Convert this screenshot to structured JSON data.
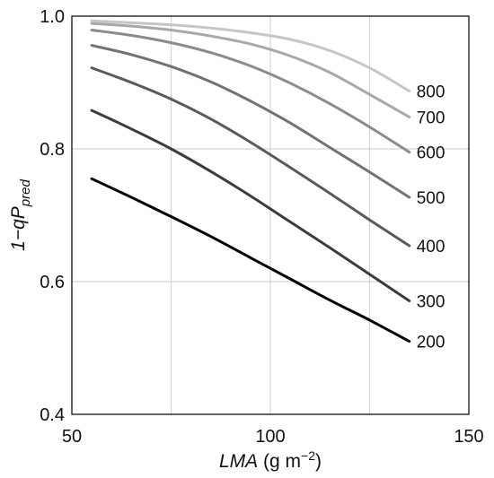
{
  "chart_data": {
    "type": "line",
    "title": "",
    "xlabel": {
      "italic": "LMA",
      "unit": " (g m",
      "exp": "−2",
      "close": ")"
    },
    "ylabel": {
      "prefix": "1−q",
      "main": "P",
      "sub": "pred"
    },
    "xlim": [
      50,
      150
    ],
    "ylim": [
      0.4,
      1.0
    ],
    "xticks": [
      {
        "value": 50,
        "label": "50"
      },
      {
        "value": 100,
        "label": "100"
      },
      {
        "value": 150,
        "label": "150"
      }
    ],
    "yticks": [
      {
        "value": 0.4,
        "label": "0.4"
      },
      {
        "value": 0.6,
        "label": "0.6"
      },
      {
        "value": 0.8,
        "label": "0.8"
      },
      {
        "value": 1.0,
        "label": "1.0"
      }
    ],
    "x_grid": [
      75,
      100,
      125
    ],
    "y_grid": [
      0.6,
      0.8
    ],
    "grid": true,
    "legend": "labels at right end of each line",
    "x": [
      55,
      65,
      75,
      85,
      95,
      105,
      115,
      125,
      135
    ],
    "series": [
      {
        "name": "800",
        "color": "#c6c6c6",
        "values": [
          0.993,
          0.99,
          0.987,
          0.982,
          0.975,
          0.965,
          0.948,
          0.922,
          0.887
        ]
      },
      {
        "name": "700",
        "color": "#a8a8a8",
        "values": [
          0.989,
          0.985,
          0.979,
          0.97,
          0.958,
          0.94,
          0.915,
          0.882,
          0.848
        ]
      },
      {
        "name": "600",
        "color": "#8b8b8b",
        "values": [
          0.979,
          0.971,
          0.96,
          0.945,
          0.925,
          0.899,
          0.868,
          0.833,
          0.795
        ]
      },
      {
        "name": "500",
        "color": "#727272",
        "values": [
          0.956,
          0.942,
          0.924,
          0.901,
          0.872,
          0.839,
          0.802,
          0.765,
          0.727
        ]
      },
      {
        "name": "400",
        "color": "#5a5a5a",
        "values": [
          0.922,
          0.9,
          0.875,
          0.845,
          0.81,
          0.772,
          0.733,
          0.693,
          0.654
        ]
      },
      {
        "name": "300",
        "color": "#3c3c3c",
        "values": [
          0.858,
          0.83,
          0.8,
          0.766,
          0.729,
          0.69,
          0.651,
          0.611,
          0.571
        ]
      },
      {
        "name": "200",
        "color": "#000000",
        "values": [
          0.755,
          0.727,
          0.698,
          0.668,
          0.636,
          0.604,
          0.572,
          0.542,
          0.51
        ]
      }
    ]
  }
}
